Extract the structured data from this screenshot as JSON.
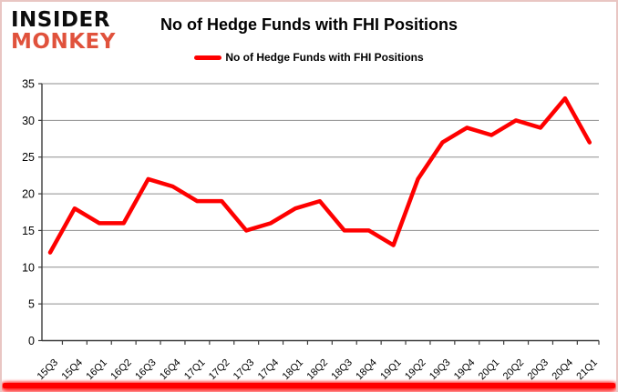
{
  "logo": {
    "line1": "INSIDER",
    "line2": "MONKEY"
  },
  "title": "No of Hedge Funds with FHI Positions",
  "legend": {
    "label": "No of Hedge Funds with FHI Positions"
  },
  "colors": {
    "line": "#fe0000",
    "logo_red": "#e0523c",
    "grid": "#8e8e8e",
    "axis": "#3c3c3c",
    "tick_label": "#000000",
    "border_pink": "#e9c6c3",
    "glow_red": "#ff0000"
  },
  "chart_data": {
    "type": "line",
    "title": "No of Hedge Funds with FHI Positions",
    "categories": [
      "15Q3",
      "15Q4",
      "16Q1",
      "16Q2",
      "16Q3",
      "16Q4",
      "17Q1",
      "17Q2",
      "17Q3",
      "17Q4",
      "18Q1",
      "18Q2",
      "18Q3",
      "18Q4",
      "19Q1",
      "19Q2",
      "19Q3",
      "19Q4",
      "20Q1",
      "20Q2",
      "20Q3",
      "20Q4",
      "21Q1"
    ],
    "series": [
      {
        "name": "No of Hedge Funds with FHI Positions",
        "values": [
          12,
          18,
          16,
          16,
          22,
          21,
          19,
          19,
          15,
          16,
          18,
          19,
          15,
          15,
          13,
          22,
          27,
          29,
          28,
          30,
          29,
          33,
          27
        ]
      }
    ],
    "xlabel": "",
    "ylabel": "",
    "ylim": [
      0,
      35
    ],
    "ytick_interval": 5,
    "grid": true,
    "legend_position": "top-center",
    "x_label_rotation_deg": 45
  }
}
